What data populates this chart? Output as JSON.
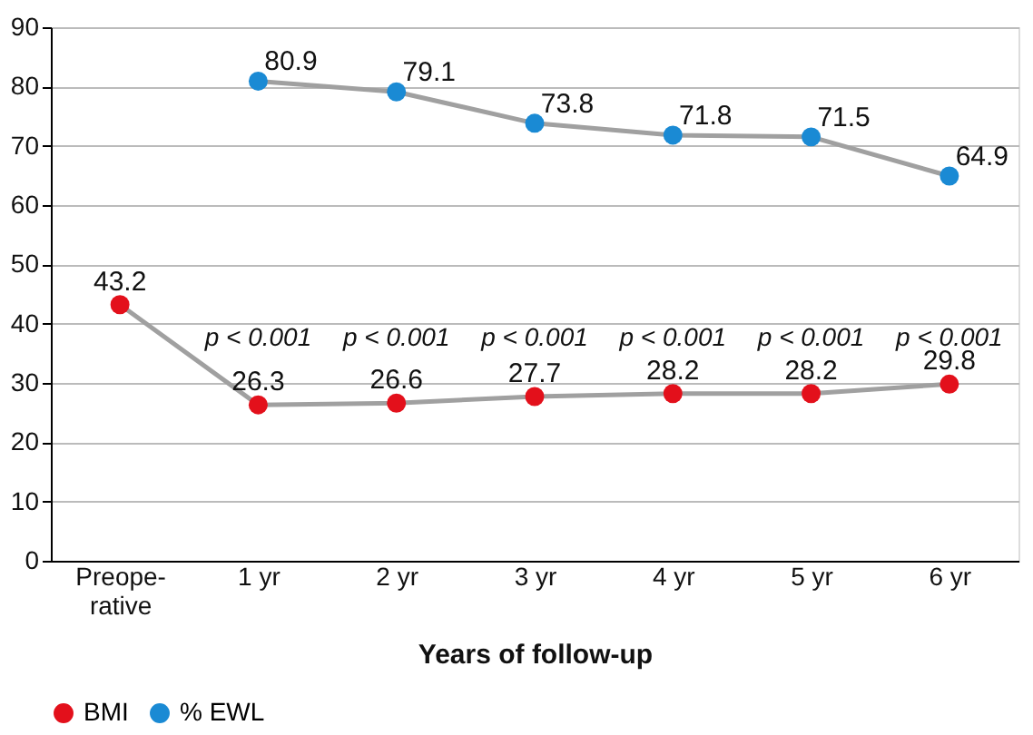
{
  "chart_data": {
    "type": "line",
    "xlabel": "Years of follow-up",
    "categories": [
      "Preope-rative",
      "1 yr",
      "2 yr",
      "3 yr",
      "4 yr",
      "5 yr",
      "6 yr"
    ],
    "series": [
      {
        "name": "BMI",
        "color": "#e3101b",
        "values": [
          43.2,
          26.3,
          26.6,
          27.7,
          28.2,
          28.2,
          29.8
        ]
      },
      {
        "name": "% EWL",
        "color": "#1a8ad4",
        "values": [
          null,
          80.9,
          79.1,
          73.8,
          71.8,
          71.5,
          64.9
        ]
      }
    ],
    "ylim": [
      0,
      90
    ],
    "yticks": [
      0,
      10,
      20,
      30,
      40,
      50,
      60,
      70,
      80,
      90
    ],
    "grid": "y",
    "legend": "bottom",
    "marker": "circle",
    "line_style": "solid",
    "data_labels": true,
    "annotations": [
      "p < 0.001",
      "p < 0.001",
      "p < 0.001",
      "p < 0.001",
      "p < 0.001",
      "p < 0.001"
    ]
  }
}
